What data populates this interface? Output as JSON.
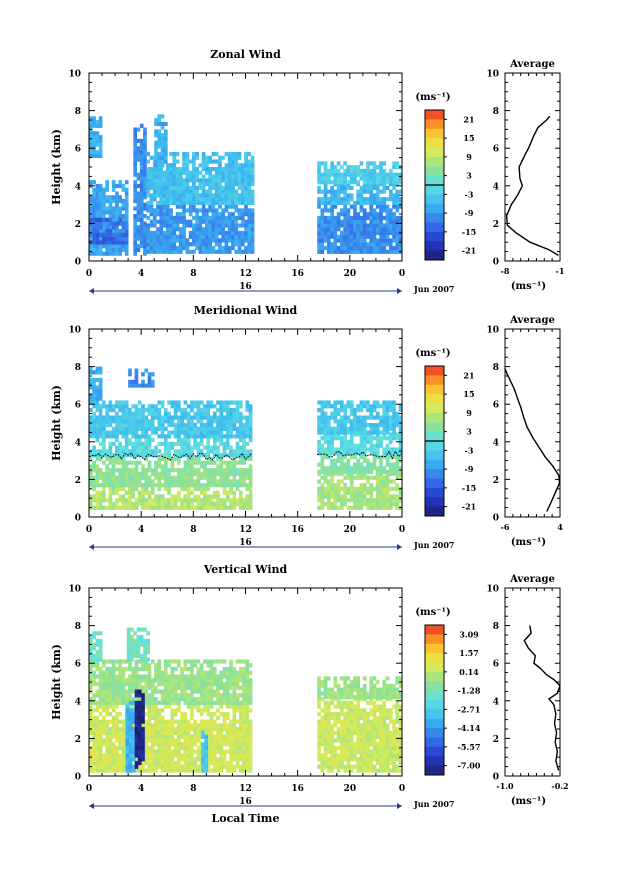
{
  "chart_data": [
    {
      "type": "heatmap",
      "title": "Zonal Wind",
      "xlabel": "",
      "ylabel": "Height (km)",
      "xlim": [
        0,
        24
      ],
      "ylim": [
        0,
        10
      ],
      "x_ticks": [
        "0",
        "4",
        "8",
        "12",
        "16",
        "20",
        "0"
      ],
      "y_ticks": [
        "0",
        "2",
        "4",
        "6",
        "8",
        "10"
      ],
      "day_label": "16",
      "date_label": "Jun 2007",
      "colorbar": {
        "unit_label": "(ms⁻¹)",
        "ticks": [
          "21",
          "15",
          "9",
          "3",
          "-3",
          "-9",
          "-15",
          "-21"
        ],
        "range": [
          -24,
          24
        ]
      },
      "data_coverage_hours": [
        [
          0,
          12.5
        ],
        [
          17.5,
          24
        ]
      ],
      "blocks": [
        {
          "t0": 0,
          "t1": 3,
          "h0": 0.3,
          "h1": 4.2,
          "v": -8
        },
        {
          "t0": 0,
          "t1": 3,
          "h0": 0.9,
          "h1": 2.2,
          "v": -13
        },
        {
          "t0": 0,
          "t1": 1,
          "h0": 5.5,
          "h1": 7.6,
          "v": -7
        },
        {
          "t0": 3.4,
          "t1": 4.4,
          "h0": 0.3,
          "h1": 7.3,
          "v": -10
        },
        {
          "t0": 4.4,
          "t1": 12.5,
          "h0": 0.4,
          "h1": 3,
          "v": -9
        },
        {
          "t0": 4.4,
          "t1": 12.5,
          "h0": 3,
          "h1": 5.7,
          "v": -5
        },
        {
          "t0": 5,
          "t1": 6,
          "h0": 5,
          "h1": 7.7,
          "v": -7
        },
        {
          "t0": 17.5,
          "t1": 24,
          "h0": 0.4,
          "h1": 3,
          "v": -10
        },
        {
          "t0": 17.5,
          "t1": 24,
          "h0": 3,
          "h1": 4.1,
          "v": -6
        },
        {
          "t0": 17.5,
          "t1": 24,
          "h0": 4.1,
          "h1": 5.3,
          "v": -3
        }
      ],
      "contour_levels": [
        0
      ],
      "profile": {
        "title": "Average",
        "xlim": [
          -8,
          -1
        ],
        "x_ticks": [
          "-8",
          "-1"
        ],
        "ylim": [
          0,
          10
        ],
        "y_ticks": [
          "0",
          "2",
          "4",
          "6",
          "8",
          "10"
        ],
        "unit_label": "(ms⁻¹)",
        "points": [
          [
            -1.2,
            0.3
          ],
          [
            -2.4,
            0.6
          ],
          [
            -4.8,
            1.0
          ],
          [
            -6.6,
            1.5
          ],
          [
            -7.7,
            1.9
          ],
          [
            -7.8,
            2.4
          ],
          [
            -7.2,
            3.0
          ],
          [
            -6.4,
            3.5
          ],
          [
            -5.8,
            4.0
          ],
          [
            -6.1,
            4.4
          ],
          [
            -6.2,
            5.0
          ],
          [
            -5.5,
            5.6
          ],
          [
            -4.9,
            6.1
          ],
          [
            -4.3,
            6.7
          ],
          [
            -3.8,
            7.1
          ],
          [
            -2.7,
            7.5
          ],
          [
            -2.3,
            7.7
          ]
        ]
      }
    },
    {
      "type": "heatmap",
      "title": "Meridional Wind",
      "xlabel": "",
      "ylabel": "Height (km)",
      "xlim": [
        0,
        24
      ],
      "ylim": [
        0,
        10
      ],
      "x_ticks": [
        "0",
        "4",
        "8",
        "12",
        "16",
        "20",
        "0"
      ],
      "y_ticks": [
        "0",
        "2",
        "4",
        "6",
        "8",
        "10"
      ],
      "day_label": "16",
      "date_label": "Jun 2007",
      "colorbar": {
        "unit_label": "(ms⁻¹)",
        "ticks": [
          "21",
          "15",
          "9",
          "3",
          "-3",
          "-9",
          "-15",
          "-21"
        ],
        "range": [
          -24,
          24
        ]
      },
      "data_coverage_hours": [
        [
          0,
          12.5
        ],
        [
          17.5,
          24
        ]
      ],
      "blocks": [
        {
          "t0": 0,
          "t1": 12.5,
          "h0": 0.4,
          "h1": 1.6,
          "v": 8
        },
        {
          "t0": 0,
          "t1": 12.5,
          "h0": 1.6,
          "h1": 3.2,
          "v": 5
        },
        {
          "t0": 0,
          "t1": 12.5,
          "h0": 3.2,
          "h1": 4.2,
          "v": -1
        },
        {
          "t0": 0,
          "t1": 12.5,
          "h0": 4.2,
          "h1": 6.2,
          "v": -4
        },
        {
          "t0": 0,
          "t1": 1,
          "h0": 6.2,
          "h1": 7.9,
          "v": -7
        },
        {
          "t0": 3,
          "t1": 4.8,
          "h0": 6.9,
          "h1": 7.9,
          "v": -10
        },
        {
          "t0": 17.5,
          "t1": 24,
          "h0": 0.4,
          "h1": 2.3,
          "v": 7
        },
        {
          "t0": 17.5,
          "t1": 24,
          "h0": 2.3,
          "h1": 3.3,
          "v": 4
        },
        {
          "t0": 17.5,
          "t1": 24,
          "h0": 3.3,
          "h1": 4.4,
          "v": -1
        },
        {
          "t0": 17.5,
          "t1": 24,
          "h0": 4.4,
          "h1": 6.1,
          "v": -4
        }
      ],
      "contour_levels": [
        0
      ],
      "profile": {
        "title": "Average",
        "xlim": [
          -6,
          4
        ],
        "x_ticks": [
          "-6",
          "4"
        ],
        "ylim": [
          0,
          10
        ],
        "y_ticks": [
          "0",
          "2",
          "4",
          "6",
          "8",
          "10"
        ],
        "unit_label": "(ms⁻¹)",
        "points": [
          [
            1.6,
            0.3
          ],
          [
            2.1,
            0.6
          ],
          [
            2.7,
            1.0
          ],
          [
            3.3,
            1.4
          ],
          [
            3.9,
            1.8
          ],
          [
            3.8,
            2.2
          ],
          [
            2.7,
            2.7
          ],
          [
            1.3,
            3.2
          ],
          [
            0.2,
            3.7
          ],
          [
            -0.9,
            4.2
          ],
          [
            -2.0,
            4.8
          ],
          [
            -2.6,
            5.3
          ],
          [
            -3.1,
            5.8
          ],
          [
            -3.7,
            6.3
          ],
          [
            -4.3,
            6.8
          ],
          [
            -5.1,
            7.3
          ],
          [
            -5.6,
            7.6
          ],
          [
            -6.0,
            7.9
          ]
        ]
      }
    },
    {
      "type": "heatmap",
      "title": "Vertical Wind",
      "xlabel": "Local Time",
      "ylabel": "Height (km)",
      "xlim": [
        0,
        24
      ],
      "ylim": [
        0,
        10
      ],
      "x_ticks": [
        "0",
        "4",
        "8",
        "12",
        "16",
        "20",
        "0"
      ],
      "y_ticks": [
        "0",
        "2",
        "4",
        "6",
        "8",
        "10"
      ],
      "day_label": "16",
      "date_label": "Jun 2007",
      "colorbar": {
        "unit_label": "(ms⁻¹)",
        "ticks": [
          "3.09",
          "1.57",
          "0.14",
          "-1.28",
          "-2.71",
          "-4.14",
          "-5.57",
          "-7.00"
        ],
        "range": [
          -7.71,
          3.8
        ]
      },
      "data_coverage_hours": [
        [
          0,
          12.5
        ],
        [
          17.5,
          24
        ]
      ],
      "blocks": [
        {
          "t0": 0,
          "t1": 12.5,
          "h0": 0.2,
          "h1": 3.8,
          "v": 0.5
        },
        {
          "t0": 0,
          "t1": 12.5,
          "h0": 3.8,
          "h1": 6.1,
          "v": -0.5
        },
        {
          "t0": 0,
          "t1": 1,
          "h0": 6.1,
          "h1": 7.6,
          "v": -1.5
        },
        {
          "t0": 2.9,
          "t1": 4.6,
          "h0": 6.1,
          "h1": 7.9,
          "v": -1.5
        },
        {
          "t0": 2.8,
          "t1": 3.5,
          "h0": 0.2,
          "h1": 4.2,
          "v": -3.5
        },
        {
          "t0": 3.5,
          "t1": 4.2,
          "h0": 0.4,
          "h1": 4.5,
          "v": -7.2
        },
        {
          "t0": 8.6,
          "t1": 9,
          "h0": 0.2,
          "h1": 2.6,
          "v": -3.0
        },
        {
          "t0": 17.5,
          "t1": 24,
          "h0": 0.2,
          "h1": 4.1,
          "v": 0.4
        },
        {
          "t0": 17.5,
          "t1": 24,
          "h0": 4.1,
          "h1": 5.3,
          "v": -0.5
        }
      ],
      "contour_levels": [],
      "profile": {
        "title": "Average",
        "xlim": [
          -1.0,
          -0.2
        ],
        "x_ticks": [
          "-1.0",
          "-0.2"
        ],
        "ylim": [
          0,
          10
        ],
        "y_ticks": [
          "0",
          "2",
          "4",
          "6",
          "8",
          "10"
        ],
        "unit_label": "(ms⁻¹)",
        "points": [
          [
            -0.22,
            0.3
          ],
          [
            -0.26,
            0.8
          ],
          [
            -0.24,
            1.3
          ],
          [
            -0.27,
            1.8
          ],
          [
            -0.25,
            2.3
          ],
          [
            -0.28,
            2.8
          ],
          [
            -0.26,
            3.3
          ],
          [
            -0.29,
            3.8
          ],
          [
            -0.36,
            4.1
          ],
          [
            -0.24,
            4.4
          ],
          [
            -0.2,
            4.8
          ],
          [
            -0.28,
            5.1
          ],
          [
            -0.4,
            5.4
          ],
          [
            -0.48,
            5.7
          ],
          [
            -0.58,
            6.0
          ],
          [
            -0.56,
            6.4
          ],
          [
            -0.66,
            6.8
          ],
          [
            -0.72,
            7.2
          ],
          [
            -0.62,
            7.6
          ],
          [
            -0.64,
            8.0
          ]
        ]
      }
    }
  ]
}
